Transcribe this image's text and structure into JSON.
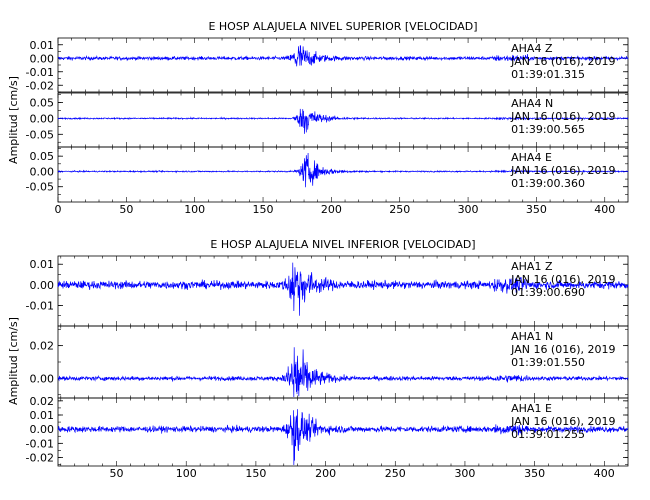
{
  "chart_data": [
    {
      "type": "line",
      "title": "E HOSP ALAJUELA NIVEL SUPERIOR [VELOCIDAD]",
      "ylabel": "Amplitud [cm/s]",
      "xlabel": "",
      "xlim": [
        0,
        417
      ],
      "xticks": [
        "0",
        "50",
        "100",
        "150",
        "200",
        "250",
        "300",
        "350",
        "400"
      ],
      "grid": false,
      "color": "#0000ff",
      "panels": [
        {
          "station": "AHA4",
          "component": "Z",
          "date": "JAN 16 (016), 2019",
          "time": "01:39:01.315",
          "ylim": [
            -0.025,
            0.015
          ],
          "yticks": [
            "0.01",
            "0.00",
            "-0.01",
            "-0.02"
          ],
          "peak_time_s": 175,
          "peak_amplitude": 0.013,
          "noise_amplitude": 0.0012
        },
        {
          "station": "AHA4",
          "component": "N",
          "date": "JAN 16 (016), 2019",
          "time": "01:39:00.565",
          "ylim": [
            -0.09,
            0.08
          ],
          "yticks": [
            "0.05",
            "0.00",
            "-0.05"
          ],
          "peak_time_s": 179,
          "peak_amplitude": 0.055,
          "noise_amplitude": 0.002
        },
        {
          "station": "AHA4",
          "component": "E",
          "date": "JAN 16 (016), 2019",
          "time": "01:39:00.360",
          "ylim": [
            -0.1,
            0.08
          ],
          "yticks": [
            "0.05",
            "0.00",
            "-0.05"
          ],
          "peak_time_s": 181,
          "peak_amplitude": 0.06,
          "noise_amplitude": 0.002
        }
      ]
    },
    {
      "type": "line",
      "title": "E HOSP ALAJUELA NIVEL INFERIOR [VELOCIDAD]",
      "ylabel": "Amplitud [cm/s]",
      "xlabel": "",
      "xlim": [
        8,
        417
      ],
      "xticks": [
        "50",
        "100",
        "150",
        "200",
        "250",
        "300",
        "350",
        "400"
      ],
      "grid": false,
      "color": "#0000ff",
      "panels": [
        {
          "station": "AHA1",
          "component": "Z",
          "date": "JAN 16 (016), 2019",
          "time": "01:39:00.690",
          "ylim": [
            -0.02,
            0.014
          ],
          "yticks": [
            "0.01",
            "0.00",
            "-0.01"
          ],
          "peak_time_s": 177,
          "peak_amplitude": 0.016,
          "noise_amplitude": 0.0018
        },
        {
          "station": "AHA1",
          "component": "N",
          "date": "JAN 16 (016), 2019",
          "time": "01:39:01.550",
          "ylim": [
            -0.012,
            0.032
          ],
          "yticks": [
            "0.02",
            "0.00"
          ],
          "peak_time_s": 177,
          "peak_amplitude": 0.027,
          "noise_amplitude": 0.0012
        },
        {
          "station": "AHA1",
          "component": "E",
          "date": "JAN 16 (016), 2019",
          "time": "01:39:01.255",
          "ylim": [
            -0.026,
            0.022
          ],
          "yticks": [
            "0.02",
            "0.01",
            "0.00",
            "-0.01",
            "-0.02"
          ],
          "peak_time_s": 177,
          "peak_amplitude": 0.02,
          "noise_amplitude": 0.002
        }
      ]
    }
  ]
}
